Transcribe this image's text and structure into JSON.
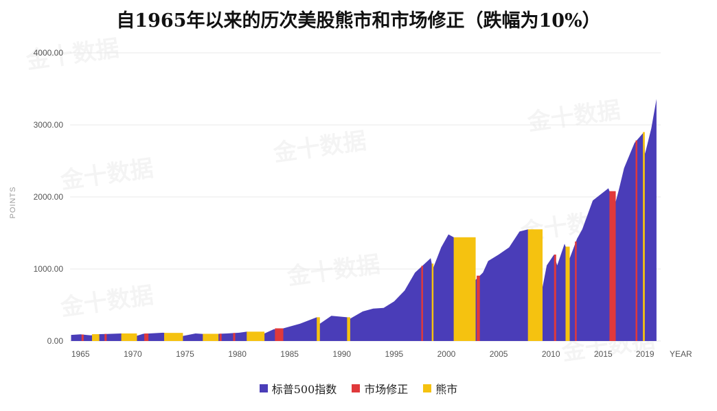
{
  "chart_data": {
    "type": "area",
    "title": "自1965年以来的历次美股熊市和市场修正（跌幅为10%）",
    "ylabel": "POINTS",
    "xlabel": "YEAR",
    "ylim": [
      0,
      4000
    ],
    "xlim": [
      1964.0,
      2020.5
    ],
    "y_ticks": [
      "0.00",
      "1000.00",
      "2000.00",
      "3000.00",
      "4000.00"
    ],
    "y_tick_values": [
      0,
      1000,
      2000,
      3000,
      4000
    ],
    "x_ticks": [
      "1965",
      "1970",
      "1975",
      "1980",
      "1985",
      "1990",
      "1995",
      "2000",
      "2005",
      "2010",
      "2015",
      "2019"
    ],
    "x_tick_values": [
      1965,
      1970,
      1975,
      1980,
      1985,
      1990,
      1995,
      2000,
      2005,
      2010,
      2015,
      2019
    ],
    "watermark": "金十数据",
    "series": [
      {
        "name": "标普500指数",
        "color": "#4a3db8",
        "x": [
          1964.1,
          1965,
          1966,
          1966.8,
          1967.5,
          1968.9,
          1970.4,
          1971,
          1972.9,
          1974.8,
          1976,
          1977,
          1978.2,
          1979,
          1980.2,
          1980.9,
          1981.5,
          1982.6,
          1983.5,
          1984,
          1985,
          1986,
          1987.6,
          1987.9,
          1989,
          1990.5,
          1990.8,
          1992,
          1993,
          1994,
          1995,
          1996,
          1997,
          1998.5,
          1998.7,
          1999.5,
          2000.2,
          2000.7,
          2001.7,
          2002.8,
          2003.5,
          2004,
          2005,
          2006,
          2007,
          2007.8,
          2008.5,
          2009.2,
          2009.6,
          2010.3,
          2010.6,
          2011.3,
          2011.8,
          2012.5,
          2013,
          2014,
          2015.5,
          2016.1,
          2016.5,
          2017,
          2018,
          2018.9,
          2019,
          2019.6,
          2020.1
        ],
        "values": [
          85,
          92,
          78,
          95,
          98,
          105,
          72,
          100,
          115,
          70,
          105,
          95,
          100,
          105,
          115,
          130,
          125,
          105,
          165,
          160,
          200,
          240,
          330,
          240,
          350,
          330,
          310,
          410,
          450,
          460,
          550,
          700,
          950,
          1150,
          1000,
          1300,
          1480,
          1440,
          1150,
          850,
          950,
          1110,
          1200,
          1300,
          1520,
          1550,
          1300,
          750,
          1050,
          1200,
          1050,
          1350,
          1150,
          1420,
          1550,
          1950,
          2120,
          1880,
          2100,
          2400,
          2750,
          2900,
          2600,
          2950,
          3360
        ]
      },
      {
        "name": "市场修正",
        "color": "#e0393b"
      },
      {
        "name": "熊市",
        "color": "#f5c210"
      }
    ],
    "bear_markets": [
      [
        1966.1,
        1966.8
      ],
      [
        1968.9,
        1970.4
      ],
      [
        1973.0,
        1974.8
      ],
      [
        1976.7,
        1978.2
      ],
      [
        1980.9,
        1982.6
      ],
      [
        1987.6,
        1987.9
      ],
      [
        1990.5,
        1990.8
      ],
      [
        1998.6,
        1998.7
      ],
      [
        2000.7,
        2002.8
      ],
      [
        2007.8,
        2009.2
      ],
      [
        2011.4,
        2011.8
      ],
      [
        2018.8,
        2018.98
      ]
    ],
    "corrections": [
      [
        1965.1,
        1965.3
      ],
      [
        1967.3,
        1967.5
      ],
      [
        1971.1,
        1971.5
      ],
      [
        1978.3,
        1978.5
      ],
      [
        1979.6,
        1979.8
      ],
      [
        1983.6,
        1984.4
      ],
      [
        1997.6,
        1997.7
      ],
      [
        2002.9,
        2003.2
      ],
      [
        2010.3,
        2010.5
      ],
      [
        2012.3,
        2012.4
      ],
      [
        2015.6,
        2016.2
      ],
      [
        2018.1,
        2018.2
      ]
    ]
  }
}
